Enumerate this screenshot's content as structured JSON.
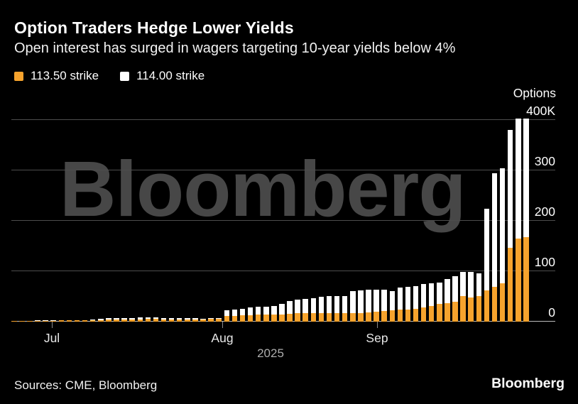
{
  "header": {
    "title": "Option Traders Hedge Lower Yields",
    "subtitle": "Open interest has surged in wagers targeting 10-year yields below 4%"
  },
  "legend": [
    {
      "label": "113.50 strike",
      "color": "#F6A32D"
    },
    {
      "label": "114.00 strike",
      "color": "#FFFFFF"
    }
  ],
  "axis": {
    "unit_label": "Options",
    "y_tick_labels": [
      "400K",
      "300",
      "200",
      "100",
      "0"
    ],
    "x_tick_labels": [
      "Jul",
      "Aug",
      "Sep"
    ],
    "year": "2025"
  },
  "watermark": "Bloomberg",
  "footer": {
    "sources": "Sources: CME, Bloomberg",
    "logo": "Bloomberg"
  },
  "chart_data": {
    "type": "bar",
    "stacked": true,
    "title": "Option Traders Hedge Lower Yields",
    "subtitle": "Open interest has surged in wagers targeting 10-year yields below 4%",
    "ylabel": "Options",
    "unit": "thousands of contracts (K)",
    "ylim": [
      0,
      400
    ],
    "y_ticks": [
      400,
      300,
      200,
      100,
      0
    ],
    "x_axis": {
      "ticks": [
        "Jul",
        "Aug",
        "Sep"
      ],
      "year": "2025",
      "frequency": "daily, late Jun - late Sep 2025"
    },
    "grid": true,
    "legend_position": "top-left",
    "series": [
      {
        "name": "113.50 strike",
        "color": "#F6A32D",
        "values": [
          1.5,
          1.5,
          1.8,
          1.8,
          2,
          2,
          2.2,
          2.2,
          2.5,
          2.5,
          3,
          3.5,
          4,
          4,
          4.5,
          4.5,
          4.5,
          5,
          5,
          4.5,
          4.5,
          4.5,
          4.5,
          4.5,
          4.5,
          5,
          5,
          11.5,
          11.6,
          13,
          13,
          13.5,
          13.5,
          14,
          14.3,
          16,
          16.5,
          17,
          17,
          17.5,
          17.5,
          17.5,
          17.5,
          17.5,
          17.5,
          18.5,
          20,
          21,
          22,
          23.5,
          24.5,
          25.5,
          28,
          31.5,
          35,
          36,
          39,
          50,
          48,
          50,
          62,
          69,
          76,
          146,
          165,
          168
        ]
      },
      {
        "name": "114.00 strike",
        "color": "#FFFFFF",
        "values": [
          0.3,
          0.3,
          0.3,
          0.4,
          0.4,
          0.5,
          0.5,
          0.5,
          0.5,
          0.6,
          1,
          1.5,
          2.5,
          3,
          3,
          3,
          3.5,
          3,
          3,
          3,
          2.5,
          2.5,
          2,
          2,
          1.5,
          1.5,
          2,
          10.5,
          13,
          13,
          15,
          15.5,
          16.5,
          17.5,
          20.7,
          25,
          27.5,
          28.5,
          30,
          32,
          32.5,
          32.5,
          33,
          43.5,
          44.5,
          44.5,
          43,
          43,
          39,
          44.5,
          44.5,
          45,
          46,
          44.5,
          43,
          49,
          51,
          49,
          51,
          46,
          161,
          225,
          228,
          234,
          237,
          234
        ]
      }
    ]
  }
}
